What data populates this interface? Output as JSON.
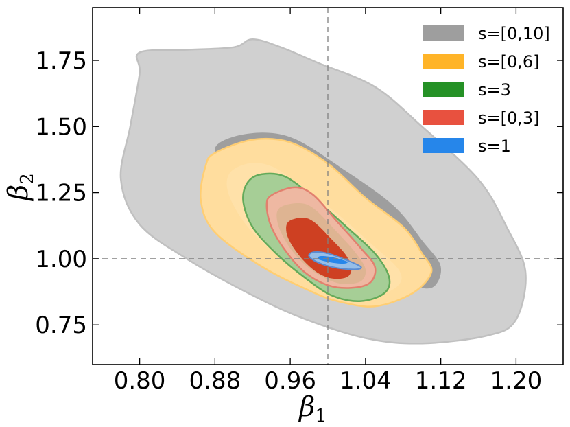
{
  "chart_data": {
    "type": "contour",
    "title": "",
    "xlabel": "β1",
    "ylabel": "β2",
    "xlim": [
      0.75,
      1.25
    ],
    "ylim": [
      0.6,
      1.95
    ],
    "xticks": [
      0.8,
      0.88,
      0.96,
      1.04,
      1.12,
      1.2
    ],
    "xtick_labels": [
      "0.80",
      "0.88",
      "0.96",
      "1.04",
      "1.12",
      "1.20"
    ],
    "yticks": [
      0.75,
      1.0,
      1.25,
      1.5,
      1.75
    ],
    "ytick_labels": [
      "0.75",
      "1.00",
      "1.25",
      "1.50",
      "1.75"
    ],
    "reference_lines": {
      "x": 1.0,
      "y": 1.0
    },
    "legend_position": "top-right",
    "series": [
      {
        "name": "s=[0,10]",
        "label": "s=[0,10]",
        "color": "#9e9e9e",
        "center": [
          1.0,
          1.2
        ],
        "outer": [
          [
            0.8,
            1.7
          ],
          [
            0.8,
            1.78
          ],
          [
            0.85,
            1.79
          ],
          [
            0.9,
            1.8
          ],
          [
            0.92,
            1.83
          ],
          [
            0.95,
            1.8
          ],
          [
            0.99,
            1.74
          ],
          [
            1.05,
            1.65
          ],
          [
            1.1,
            1.5
          ],
          [
            1.16,
            1.3
          ],
          [
            1.19,
            1.12
          ],
          [
            1.21,
            0.95
          ],
          [
            1.2,
            0.77
          ],
          [
            1.17,
            0.71
          ],
          [
            1.1,
            0.68
          ],
          [
            1.04,
            0.7
          ],
          [
            0.97,
            0.78
          ],
          [
            0.91,
            0.88
          ],
          [
            0.85,
            1.0
          ],
          [
            0.8,
            1.13
          ],
          [
            0.78,
            1.3
          ],
          [
            0.79,
            1.5
          ]
        ],
        "inner": [
          [
            0.88,
            1.41
          ],
          [
            0.91,
            1.47
          ],
          [
            0.96,
            1.46
          ],
          [
            1.02,
            1.33
          ],
          [
            1.07,
            1.2
          ],
          [
            1.1,
            1.07
          ],
          [
            1.12,
            0.97
          ],
          [
            1.11,
            0.89
          ],
          [
            1.08,
            0.92
          ],
          [
            1.03,
            1.04
          ],
          [
            0.97,
            1.18
          ],
          [
            0.92,
            1.3
          ]
        ]
      },
      {
        "name": "s=[0,6]",
        "label": "s=[0,6]",
        "color": "#ffb428",
        "center": [
          0.99,
          1.1
        ],
        "outer": [
          [
            0.87,
            1.35
          ],
          [
            0.88,
            1.4
          ],
          [
            0.92,
            1.45
          ],
          [
            0.96,
            1.44
          ],
          [
            1.0,
            1.36
          ],
          [
            1.04,
            1.23
          ],
          [
            1.08,
            1.12
          ],
          [
            1.1,
            1.02
          ],
          [
            1.11,
            0.95
          ],
          [
            1.09,
            0.87
          ],
          [
            1.05,
            0.82
          ],
          [
            1.01,
            0.84
          ],
          [
            0.98,
            0.88
          ],
          [
            0.93,
            0.97
          ],
          [
            0.88,
            1.1
          ],
          [
            0.865,
            1.22
          ]
        ],
        "inner": []
      },
      {
        "name": "s=3",
        "label": "s=3",
        "color": "#259126",
        "center": [
          0.99,
          1.0
        ],
        "outer": [
          [
            0.915,
            1.29
          ],
          [
            0.93,
            1.32
          ],
          [
            0.955,
            1.31
          ],
          [
            0.985,
            1.23
          ],
          [
            1.02,
            1.12
          ],
          [
            1.05,
            1.02
          ],
          [
            1.065,
            0.93
          ],
          [
            1.06,
            0.87
          ],
          [
            1.035,
            0.84
          ],
          [
            1.005,
            0.86
          ],
          [
            0.975,
            0.93
          ],
          [
            0.945,
            1.02
          ],
          [
            0.92,
            1.12
          ],
          [
            0.91,
            1.22
          ]
        ],
        "inner": []
      },
      {
        "name": "s=[0,3]",
        "label": "s=[0,3]",
        "color": "#e8513f",
        "center": [
          0.99,
          1.0
        ],
        "outer": [
          [
            0.94,
            1.24
          ],
          [
            0.965,
            1.27
          ],
          [
            0.985,
            1.24
          ],
          [
            1.01,
            1.14
          ],
          [
            1.035,
            1.04
          ],
          [
            1.05,
            0.97
          ],
          [
            1.045,
            0.91
          ],
          [
            1.025,
            0.89
          ],
          [
            1.0,
            0.9
          ],
          [
            0.975,
            0.95
          ],
          [
            0.955,
            1.03
          ],
          [
            0.94,
            1.12
          ],
          [
            0.935,
            1.2
          ]
        ],
        "inner": []
      },
      {
        "name": "s=1",
        "label": "s=1",
        "color": "#2686ea",
        "center": [
          1.0,
          1.0
        ],
        "outer": [
          [
            0.985,
            1.025
          ],
          [
            1.0,
            1.02
          ],
          [
            1.02,
            0.995
          ],
          [
            1.035,
            0.97
          ],
          [
            1.03,
            0.96
          ],
          [
            1.01,
            0.965
          ],
          [
            0.99,
            0.985
          ],
          [
            0.98,
            1.01
          ]
        ],
        "inner": [
          [
            0.992,
            1.01
          ],
          [
            1.005,
            1.006
          ],
          [
            1.02,
            0.99
          ],
          [
            1.018,
            0.982
          ],
          [
            1.005,
            0.985
          ],
          [
            0.99,
            0.998
          ]
        ]
      }
    ],
    "overlays": {
      "orange_inner": [
        [
          0.895,
          1.32
        ],
        [
          0.915,
          1.36
        ],
        [
          0.94,
          1.35
        ],
        [
          0.97,
          1.28
        ],
        [
          1.01,
          1.17
        ],
        [
          1.045,
          1.06
        ],
        [
          1.075,
          0.96
        ],
        [
          1.075,
          0.9
        ],
        [
          1.05,
          0.86
        ],
        [
          1.015,
          0.87
        ],
        [
          0.985,
          0.92
        ],
        [
          0.95,
          1.0
        ],
        [
          0.915,
          1.12
        ],
        [
          0.895,
          1.24
        ]
      ],
      "red_core": [
        [
          0.958,
          1.14
        ],
        [
          0.972,
          1.155
        ],
        [
          0.985,
          1.14
        ],
        [
          1.005,
          1.07
        ],
        [
          1.02,
          1.01
        ],
        [
          1.025,
          0.96
        ],
        [
          1.02,
          0.93
        ],
        [
          1.005,
          0.925
        ],
        [
          0.99,
          0.945
        ],
        [
          0.975,
          0.99
        ],
        [
          0.962,
          1.05
        ],
        [
          0.956,
          1.1
        ]
      ],
      "red_mid": [
        [
          0.948,
          1.19
        ],
        [
          0.968,
          1.21
        ],
        [
          0.985,
          1.19
        ],
        [
          1.01,
          1.1
        ],
        [
          1.03,
          1.02
        ],
        [
          1.04,
          0.96
        ],
        [
          1.035,
          0.915
        ],
        [
          1.015,
          0.905
        ],
        [
          0.995,
          0.93
        ],
        [
          0.975,
          0.98
        ],
        [
          0.958,
          1.05
        ],
        [
          0.947,
          1.13
        ]
      ]
    }
  }
}
